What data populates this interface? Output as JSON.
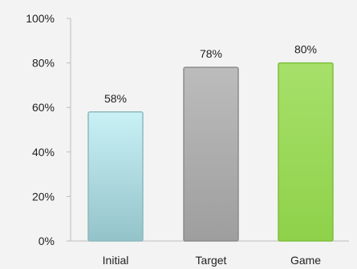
{
  "chart_data": {
    "type": "bar",
    "title": "",
    "xlabel": "",
    "ylabel": "",
    "categories": [
      "Initial",
      "Target",
      "Game"
    ],
    "values": [
      58,
      78,
      80
    ],
    "data_labels": [
      "58%",
      "78%",
      "80%"
    ],
    "ylim": [
      0,
      100
    ],
    "y_ticks": [
      0,
      20,
      40,
      60,
      80,
      100
    ],
    "y_tick_labels": [
      "0%",
      "20%",
      "40%",
      "60%",
      "80%",
      "100%"
    ],
    "grid": false,
    "legend": "none",
    "bar_colors": [
      {
        "top": "#c9f1f6",
        "bottom": "#93c3c9",
        "stroke": "#8db9be"
      },
      {
        "top": "#bcbcbc",
        "bottom": "#9e9e9e",
        "stroke": "#8c8c8c"
      },
      {
        "top": "#a6e06a",
        "bottom": "#8fd14a",
        "stroke": "#7fbf3e"
      }
    ],
    "background": "#f3f3f3",
    "axis_color": "#bdbdbd"
  }
}
